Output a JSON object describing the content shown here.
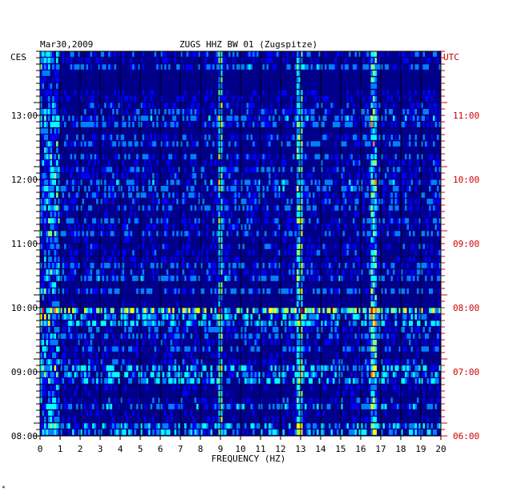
{
  "chart_data": {
    "type": "heatmap",
    "date": "Mar30,2009",
    "title": "ZUGS HHZ BW 01 (Zugspitze)",
    "left_timezone": "CES",
    "right_timezone": "UTC",
    "xlabel": "FREQUENCY (HZ)",
    "xlim": [
      0,
      20
    ],
    "x_ticks": [
      "0",
      "1",
      "2",
      "3",
      "4",
      "5",
      "6",
      "7",
      "8",
      "9",
      "10",
      "11",
      "12",
      "13",
      "14",
      "15",
      "16",
      "17",
      "18",
      "19",
      "20"
    ],
    "y_ticks_left": [
      "13:00",
      "12:00",
      "11:00",
      "10:00",
      "09:00",
      "08:00"
    ],
    "y_ticks_right": [
      "11:00",
      "10:00",
      "09:00",
      "08:00",
      "07:00",
      "06:00"
    ],
    "time_range_ces": [
      "08:00",
      "14:00"
    ],
    "rows": 60,
    "row_minutes": 6,
    "background_color": "#00008c",
    "colormap": [
      "#000088",
      "#0000ff",
      "#0080ff",
      "#00ffff",
      "#80ff80",
      "#ffff00",
      "#ff8000",
      "#ff0000"
    ],
    "high_energy_bands_ces": [
      "09:55-10:00",
      "10:00-10:05",
      "08:55-09:05"
    ],
    "persistent_lines_hz": [
      9.0,
      12.9,
      16.7
    ],
    "grid": true
  },
  "footer_mark": "*"
}
